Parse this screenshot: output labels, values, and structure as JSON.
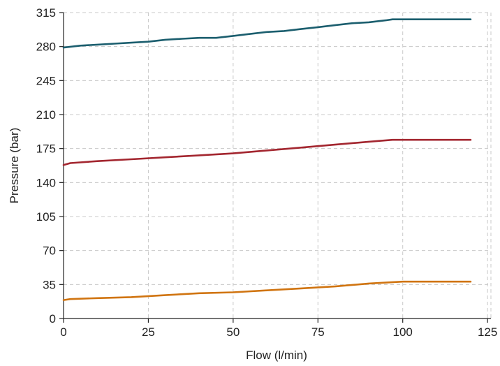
{
  "chart_data": {
    "type": "line",
    "title": "",
    "xlabel": "Flow (l/min)",
    "ylabel": "Pressure (bar)",
    "xlim": [
      0,
      126
    ],
    "ylim": [
      0,
      315
    ],
    "xticks": [
      0,
      25,
      50,
      75,
      100,
      125
    ],
    "yticks": [
      0,
      35,
      70,
      105,
      140,
      175,
      210,
      245,
      280,
      315
    ],
    "grid": true,
    "legend": "none",
    "series": [
      {
        "color": "#1b5e6e",
        "x": [
          0,
          5,
          10,
          15,
          20,
          25,
          30,
          35,
          40,
          45,
          50,
          55,
          60,
          65,
          70,
          75,
          80,
          85,
          90,
          95,
          97,
          100,
          110,
          120
        ],
        "y": [
          279,
          281,
          282,
          283,
          284,
          285,
          287,
          288,
          289,
          289,
          291,
          293,
          295,
          296,
          298,
          300,
          302,
          304,
          305,
          307,
          308,
          308,
          308,
          308
        ]
      },
      {
        "color": "#a3262f",
        "x": [
          0,
          2,
          10,
          20,
          30,
          40,
          50,
          60,
          70,
          80,
          90,
          97,
          100,
          110,
          120
        ],
        "y": [
          158,
          160,
          162,
          164,
          166,
          168,
          170,
          173,
          176,
          179,
          182,
          184,
          184,
          184,
          184
        ]
      },
      {
        "color": "#d07410",
        "x": [
          0,
          2,
          10,
          20,
          30,
          40,
          50,
          60,
          70,
          80,
          90,
          100,
          110,
          120
        ],
        "y": [
          19,
          20,
          21,
          22,
          24,
          26,
          27,
          29,
          31,
          33,
          36,
          38,
          38,
          38
        ]
      }
    ]
  }
}
